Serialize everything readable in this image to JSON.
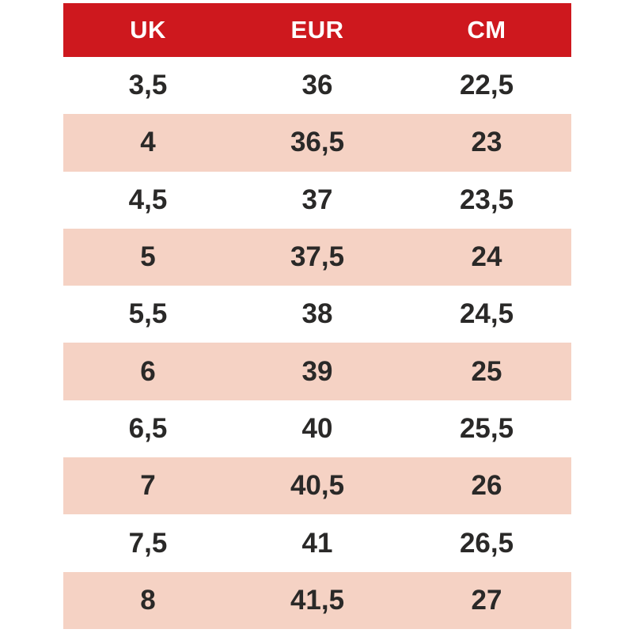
{
  "chart_data": {
    "type": "table",
    "columns": [
      "UK",
      "EUR",
      "CM"
    ],
    "rows": [
      [
        "3,5",
        "36",
        "22,5"
      ],
      [
        "4",
        "36,5",
        "23"
      ],
      [
        "4,5",
        "37",
        "23,5"
      ],
      [
        "5",
        "37,5",
        "24"
      ],
      [
        "5,5",
        "38",
        "24,5"
      ],
      [
        "6",
        "39",
        "25"
      ],
      [
        "6,5",
        "40",
        "25,5"
      ],
      [
        "7",
        "40,5",
        "26"
      ],
      [
        "7,5",
        "41",
        "26,5"
      ],
      [
        "8",
        "41,5",
        "27"
      ]
    ],
    "layout": {
      "zebra_striping": true,
      "first_body_row_background": "white",
      "header_position": "top"
    }
  },
  "colors": {
    "header_bg": "#ce181e",
    "header_text": "#ffffff",
    "zebra_row_bg": "#f5d2c4",
    "default_row_bg": "#ffffff",
    "cell_text": "#2a2928",
    "page_bg": "#ffffff"
  }
}
